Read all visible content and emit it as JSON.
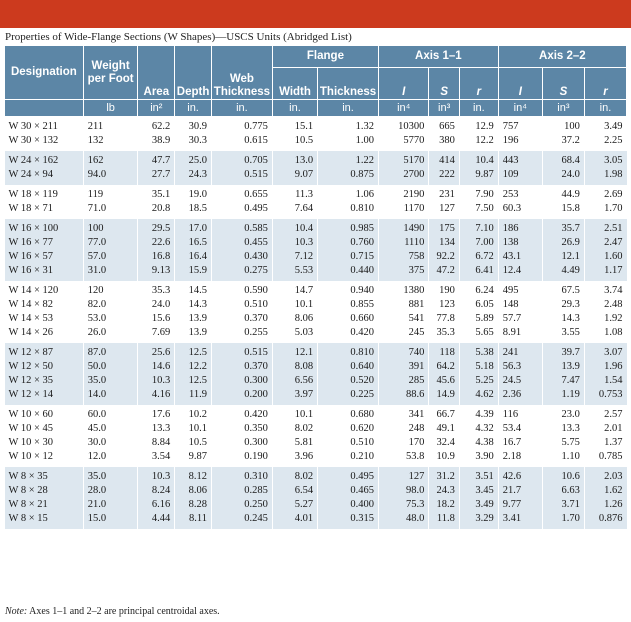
{
  "caption": "Properties of Wide-Flange Sections (W Shapes)—USCS Units (Abridged List)",
  "headers": {
    "designation": "Designation",
    "weight": "Weight per Foot",
    "area": "Area",
    "depth": "Depth",
    "web": "Web Thickness",
    "flange": "Flange",
    "flange_width": "Width",
    "flange_thickness": "Thickness",
    "axis1": "Axis 1–1",
    "axis2": "Axis 2–2",
    "I": "I",
    "S": "S",
    "r": "r"
  },
  "units": {
    "weight": "lb",
    "area": "in²",
    "depth": "in.",
    "web": "in.",
    "flange_width": "in.",
    "flange_thickness": "in.",
    "I1": "in⁴",
    "S1": "in³",
    "r1": "in.",
    "I2": "in⁴",
    "S2": "in³",
    "r2": "in."
  },
  "groups": [
    {
      "rows": [
        [
          "W 30 × 211",
          "211",
          "62.2",
          "30.9",
          "0.775",
          "15.1",
          "1.32",
          "10300",
          "665",
          "12.9",
          "757",
          "100",
          "3.49"
        ],
        [
          "W 30 × 132",
          "132",
          "38.9",
          "30.3",
          "0.615",
          "10.5",
          "1.00",
          "5770",
          "380",
          "12.2",
          "196",
          "37.2",
          "2.25"
        ]
      ]
    },
    {
      "rows": [
        [
          "W 24 × 162",
          "162",
          "47.7",
          "25.0",
          "0.705",
          "13.0",
          "1.22",
          "5170",
          "414",
          "10.4",
          "443",
          "68.4",
          "3.05"
        ],
        [
          "W 24 × 94",
          "94.0",
          "27.7",
          "24.3",
          "0.515",
          "9.07",
          "0.875",
          "2700",
          "222",
          "9.87",
          "109",
          "24.0",
          "1.98"
        ]
      ]
    },
    {
      "rows": [
        [
          "W 18 × 119",
          "119",
          "35.1",
          "19.0",
          "0.655",
          "11.3",
          "1.06",
          "2190",
          "231",
          "7.90",
          "253",
          "44.9",
          "2.69"
        ],
        [
          "W 18 × 71",
          "71.0",
          "20.8",
          "18.5",
          "0.495",
          "7.64",
          "0.810",
          "1170",
          "127",
          "7.50",
          "60.3",
          "15.8",
          "1.70"
        ]
      ]
    },
    {
      "rows": [
        [
          "W 16 × 100",
          "100",
          "29.5",
          "17.0",
          "0.585",
          "10.4",
          "0.985",
          "1490",
          "175",
          "7.10",
          "186",
          "35.7",
          "2.51"
        ],
        [
          "W 16 × 77",
          "77.0",
          "22.6",
          "16.5",
          "0.455",
          "10.3",
          "0.760",
          "1110",
          "134",
          "7.00",
          "138",
          "26.9",
          "2.47"
        ],
        [
          "W 16 × 57",
          "57.0",
          "16.8",
          "16.4",
          "0.430",
          "7.12",
          "0.715",
          "758",
          "92.2",
          "6.72",
          "43.1",
          "12.1",
          "1.60"
        ],
        [
          "W 16 × 31",
          "31.0",
          "9.13",
          "15.9",
          "0.275",
          "5.53",
          "0.440",
          "375",
          "47.2",
          "6.41",
          "12.4",
          "4.49",
          "1.17"
        ]
      ]
    },
    {
      "rows": [
        [
          "W 14 × 120",
          "120",
          "35.3",
          "14.5",
          "0.590",
          "14.7",
          "0.940",
          "1380",
          "190",
          "6.24",
          "495",
          "67.5",
          "3.74"
        ],
        [
          "W 14 × 82",
          "82.0",
          "24.0",
          "14.3",
          "0.510",
          "10.1",
          "0.855",
          "881",
          "123",
          "6.05",
          "148",
          "29.3",
          "2.48"
        ],
        [
          "W 14 × 53",
          "53.0",
          "15.6",
          "13.9",
          "0.370",
          "8.06",
          "0.660",
          "541",
          "77.8",
          "5.89",
          "57.7",
          "14.3",
          "1.92"
        ],
        [
          "W 14 × 26",
          "26.0",
          "7.69",
          "13.9",
          "0.255",
          "5.03",
          "0.420",
          "245",
          "35.3",
          "5.65",
          "8.91",
          "3.55",
          "1.08"
        ]
      ]
    },
    {
      "rows": [
        [
          "W 12 × 87",
          "87.0",
          "25.6",
          "12.5",
          "0.515",
          "12.1",
          "0.810",
          "740",
          "118",
          "5.38",
          "241",
          "39.7",
          "3.07"
        ],
        [
          "W 12 × 50",
          "50.0",
          "14.6",
          "12.2",
          "0.370",
          "8.08",
          "0.640",
          "391",
          "64.2",
          "5.18",
          "56.3",
          "13.9",
          "1.96"
        ],
        [
          "W 12 × 35",
          "35.0",
          "10.3",
          "12.5",
          "0.300",
          "6.56",
          "0.520",
          "285",
          "45.6",
          "5.25",
          "24.5",
          "7.47",
          "1.54"
        ],
        [
          "W 12 × 14",
          "14.0",
          "4.16",
          "11.9",
          "0.200",
          "3.97",
          "0.225",
          "88.6",
          "14.9",
          "4.62",
          "2.36",
          "1.19",
          "0.753"
        ]
      ]
    },
    {
      "rows": [
        [
          "W 10 × 60",
          "60.0",
          "17.6",
          "10.2",
          "0.420",
          "10.1",
          "0.680",
          "341",
          "66.7",
          "4.39",
          "116",
          "23.0",
          "2.57"
        ],
        [
          "W 10 × 45",
          "45.0",
          "13.3",
          "10.1",
          "0.350",
          "8.02",
          "0.620",
          "248",
          "49.1",
          "4.32",
          "53.4",
          "13.3",
          "2.01"
        ],
        [
          "W 10 × 30",
          "30.0",
          "8.84",
          "10.5",
          "0.300",
          "5.81",
          "0.510",
          "170",
          "32.4",
          "4.38",
          "16.7",
          "5.75",
          "1.37"
        ],
        [
          "W 10 × 12",
          "12.0",
          "3.54",
          "9.87",
          "0.190",
          "3.96",
          "0.210",
          "53.8",
          "10.9",
          "3.90",
          "2.18",
          "1.10",
          "0.785"
        ]
      ]
    },
    {
      "rows": [
        [
          "W 8 × 35",
          "35.0",
          "10.3",
          "8.12",
          "0.310",
          "8.02",
          "0.495",
          "127",
          "31.2",
          "3.51",
          "42.6",
          "10.6",
          "2.03"
        ],
        [
          "W 8 × 28",
          "28.0",
          "8.24",
          "8.06",
          "0.285",
          "6.54",
          "0.465",
          "98.0",
          "24.3",
          "3.45",
          "21.7",
          "6.63",
          "1.62"
        ],
        [
          "W 8 × 21",
          "21.0",
          "6.16",
          "8.28",
          "0.250",
          "5.27",
          "0.400",
          "75.3",
          "18.2",
          "3.49",
          "9.77",
          "3.71",
          "1.26"
        ],
        [
          "W 8 × 15",
          "15.0",
          "4.44",
          "8.11",
          "0.245",
          "4.01",
          "0.315",
          "48.0",
          "11.8",
          "3.29",
          "3.41",
          "1.70",
          "0.876"
        ]
      ]
    }
  ],
  "note": {
    "lead": "Note:",
    "text": "Axes 1–1 and 2–2 are principal centroidal axes."
  }
}
